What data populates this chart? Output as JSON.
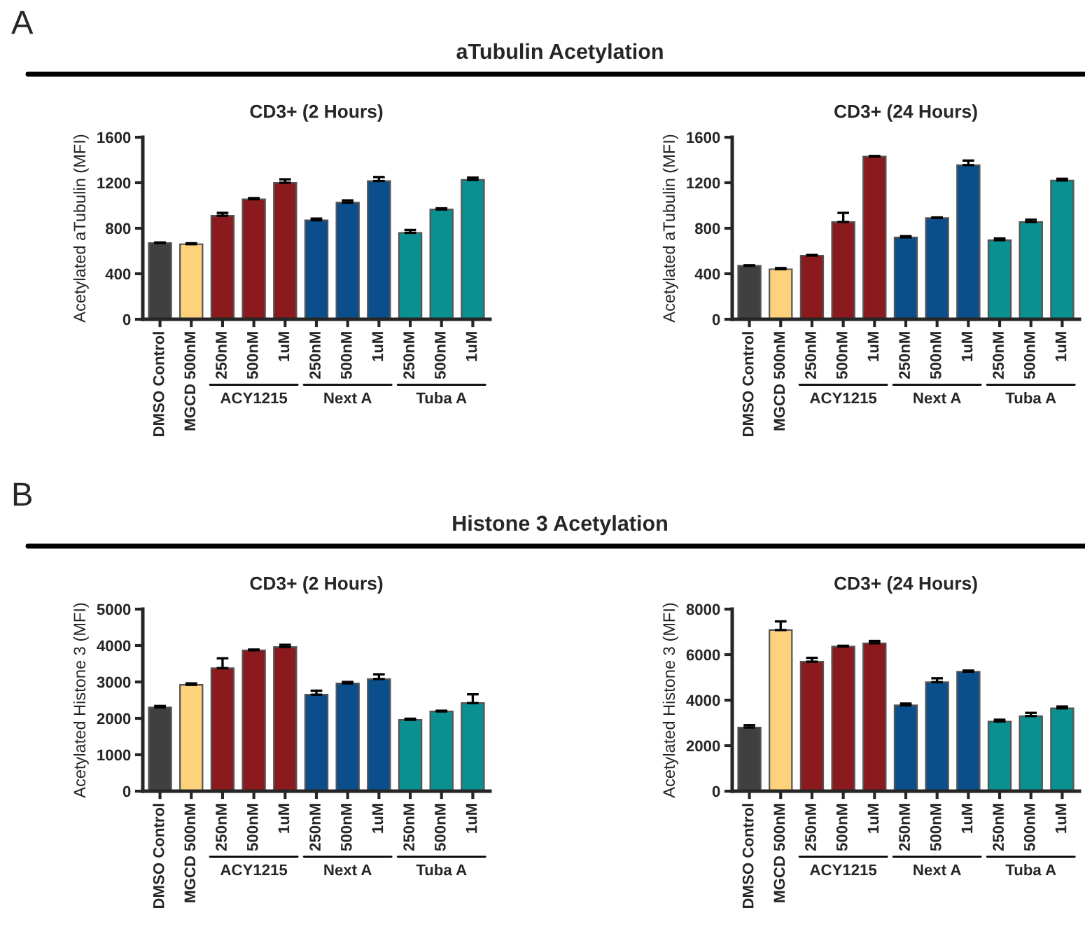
{
  "chart_data": [
    {
      "type": "bar",
      "title": "CD3+ (2 Hours)",
      "ylabel": "Acetylated aTubulin (MFI)",
      "categories": [
        "DMSO Control",
        "MGCD 500nM",
        "250nM",
        "500nM",
        "1uM",
        "250nM",
        "500nM",
        "1uM",
        "250nM",
        "500nM",
        "1uM"
      ],
      "colors": [
        "#404040",
        "#fdd27a",
        "#8b1a1e",
        "#8b1a1e",
        "#8b1a1e",
        "#0a4f8c",
        "#0a4f8c",
        "#0a4f8c",
        "#0a9090",
        "#0a9090",
        "#0a9090"
      ],
      "values": [
        670,
        660,
        910,
        1055,
        1200,
        870,
        1025,
        1215,
        760,
        965,
        1225
      ],
      "errors": [
        [
          670,
          675
        ],
        [
          660,
          668
        ],
        [
          910,
          935
        ],
        [
          1055,
          1065
        ],
        [
          1200,
          1230
        ],
        [
          870,
          885
        ],
        [
          1025,
          1045
        ],
        [
          1215,
          1250
        ],
        [
          760,
          785
        ],
        [
          965,
          975
        ],
        [
          1225,
          1245
        ]
      ],
      "ylim": [
        0,
        1600
      ],
      "yticks": [
        0,
        400,
        800,
        1200,
        1600
      ],
      "annotations": [
        "A",
        "aTubulin Acetylation",
        "ACY1215",
        "Next A",
        "Tuba A"
      ]
    },
    {
      "type": "bar",
      "title": "CD3+ (24 Hours)",
      "ylabel": "Acetylated aTubulin (MFI)",
      "categories": [
        "DMSO Control",
        "MGCD 500nM",
        "250nM",
        "500nM",
        "1uM",
        "250nM",
        "500nM",
        "1uM",
        "250nM",
        "500nM",
        "1uM"
      ],
      "colors": [
        "#404040",
        "#fdd27a",
        "#8b1a1e",
        "#8b1a1e",
        "#8b1a1e",
        "#0a4f8c",
        "#0a4f8c",
        "#0a4f8c",
        "#0a9090",
        "#0a9090",
        "#0a9090"
      ],
      "values": [
        470,
        440,
        560,
        855,
        1430,
        720,
        890,
        1355,
        695,
        855,
        1220
      ],
      "errors": [
        [
          470,
          475
        ],
        [
          440,
          450
        ],
        [
          560,
          565
        ],
        [
          855,
          935
        ],
        [
          1430,
          1435
        ],
        [
          720,
          730
        ],
        [
          890,
          895
        ],
        [
          1355,
          1395
        ],
        [
          695,
          710
        ],
        [
          855,
          875
        ],
        [
          1220,
          1235
        ]
      ],
      "ylim": [
        0,
        1600
      ],
      "yticks": [
        0,
        400,
        800,
        1200,
        1600
      ],
      "annotations": [
        "ACY1215",
        "Next A",
        "Tuba A"
      ]
    },
    {
      "type": "bar",
      "title": "CD3+ (2 Hours)",
      "ylabel": "Acetylated Histone 3 (MFI)",
      "categories": [
        "DMSO Control",
        "MGCD 500nM",
        "250nM",
        "500nM",
        "1uM",
        "250nM",
        "500nM",
        "1uM",
        "250nM",
        "500nM",
        "1uM"
      ],
      "colors": [
        "#404040",
        "#fdd27a",
        "#8b1a1e",
        "#8b1a1e",
        "#8b1a1e",
        "#0a4f8c",
        "#0a4f8c",
        "#0a4f8c",
        "#0a9090",
        "#0a9090",
        "#0a9090"
      ],
      "values": [
        2300,
        2920,
        3380,
        3870,
        3960,
        2650,
        2960,
        3080,
        1960,
        2190,
        2420
      ],
      "errors": [
        [
          2300,
          2340
        ],
        [
          2920,
          2960
        ],
        [
          3380,
          3650
        ],
        [
          3870,
          3890
        ],
        [
          3960,
          4020
        ],
        [
          2650,
          2760
        ],
        [
          2960,
          3000
        ],
        [
          3080,
          3210
        ],
        [
          1960,
          1990
        ],
        [
          2190,
          2210
        ],
        [
          2420,
          2660
        ]
      ],
      "ylim": [
        0,
        5000
      ],
      "yticks": [
        0,
        1000,
        2000,
        3000,
        4000,
        5000
      ],
      "annotations": [
        "B",
        "Histone 3 Acetylation",
        "ACY1215",
        "Next A",
        "Tuba A"
      ]
    },
    {
      "type": "bar",
      "title": "CD3+ (24 Hours)",
      "ylabel": "Acetylated Histone 3 (MFI)",
      "categories": [
        "DMSO Control",
        "MGCD 500nM",
        "250nM",
        "500nM",
        "1uM",
        "250nM",
        "500nM",
        "1uM",
        "250nM",
        "500nM",
        "1uM"
      ],
      "colors": [
        "#404040",
        "#fdd27a",
        "#8b1a1e",
        "#8b1a1e",
        "#8b1a1e",
        "#0a4f8c",
        "#0a4f8c",
        "#0a4f8c",
        "#0a9090",
        "#0a9090",
        "#0a9090"
      ],
      "values": [
        2800,
        7080,
        5690,
        6360,
        6500,
        3770,
        4790,
        5250,
        3060,
        3300,
        3640
      ],
      "errors": [
        [
          2800,
          2900
        ],
        [
          7080,
          7460
        ],
        [
          5690,
          5860
        ],
        [
          6360,
          6390
        ],
        [
          6500,
          6600
        ],
        [
          3770,
          3850
        ],
        [
          4790,
          4960
        ],
        [
          5250,
          5300
        ],
        [
          3060,
          3140
        ],
        [
          3300,
          3440
        ],
        [
          3640,
          3720
        ]
      ],
      "ylim": [
        0,
        8000
      ],
      "yticks": [
        0,
        2000,
        4000,
        6000,
        8000
      ],
      "annotations": [
        "ACY1215",
        "Next A",
        "Tuba A"
      ]
    }
  ]
}
